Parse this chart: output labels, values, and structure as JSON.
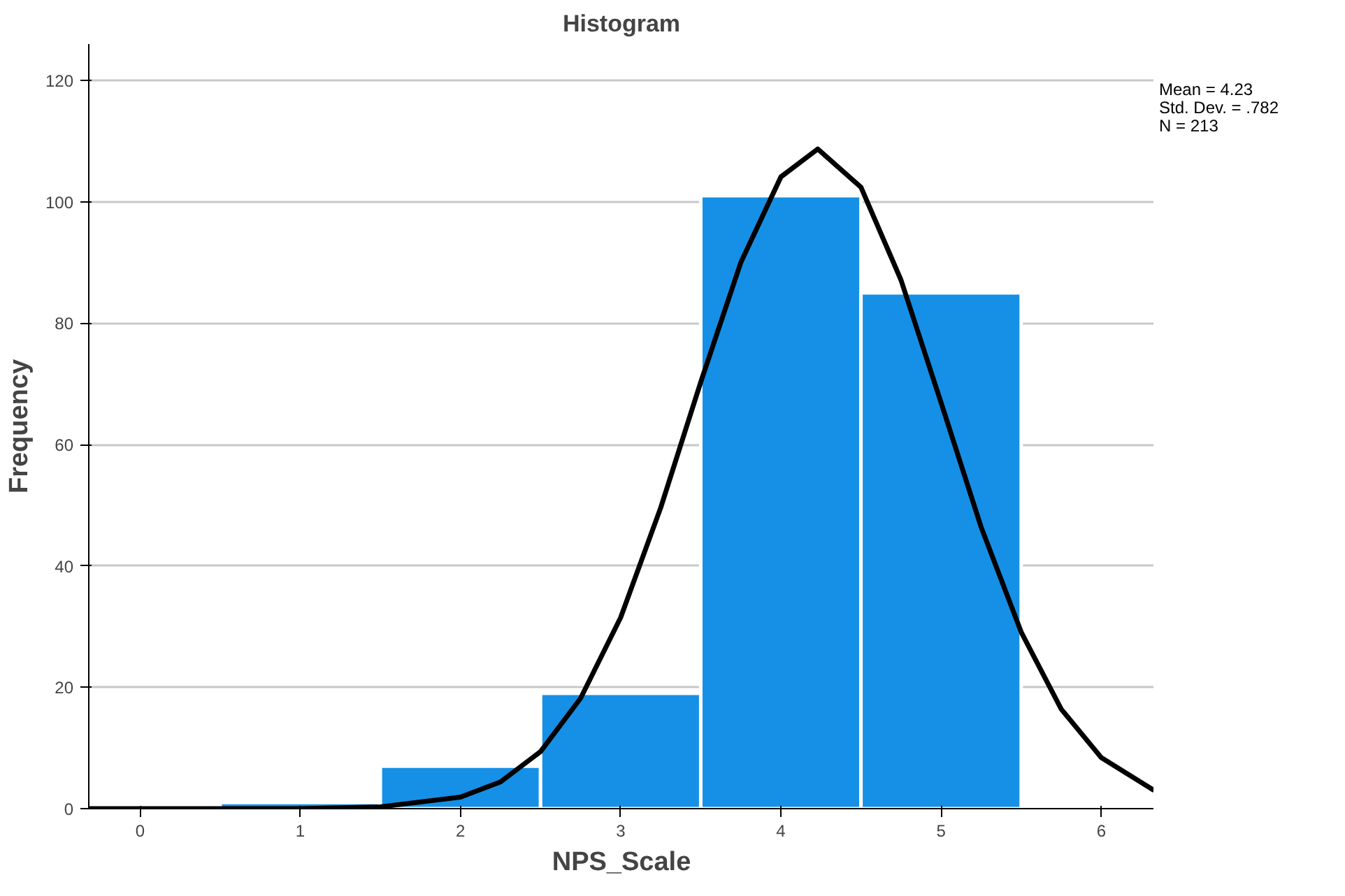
{
  "chart_data": {
    "type": "histogram",
    "title": "Histogram",
    "xlabel": "NPS_Scale",
    "ylabel": "Frequency",
    "bins": [
      0.5,
      1.5,
      2.5,
      3.5,
      4.5,
      5.5
    ],
    "values": [
      1,
      7,
      19,
      101,
      85
    ],
    "color": "#1690e6",
    "series": [
      {
        "type": "line",
        "color": "#000000",
        "x": [
          -0.32,
          1,
          1.5,
          2,
          2.25,
          2.5,
          2.75,
          3,
          3.25,
          3.5,
          3.75,
          4,
          4.23,
          4.5,
          4.75,
          5,
          5.25,
          5.5,
          5.75,
          6,
          6.33
        ],
        "values": [
          0,
          0,
          0.3,
          1.9,
          4.4,
          9.4,
          18.2,
          31.5,
          49.6,
          70.3,
          90.0,
          104.1,
          108.7,
          102.4,
          87.1,
          66.9,
          46.4,
          29.1,
          16.4,
          8.4,
          3.0
        ]
      }
    ],
    "xlim": [
      -0.32,
      6.33
    ],
    "ylim": [
      0,
      126
    ],
    "xticks": [
      0,
      1,
      2,
      3,
      4,
      5,
      6
    ],
    "yticks": [
      0,
      20,
      40,
      60,
      80,
      100,
      120
    ],
    "grid": "y",
    "annotations": [
      "Mean = 4.23",
      "Std. Dev. = .782",
      "N = 213"
    ]
  }
}
